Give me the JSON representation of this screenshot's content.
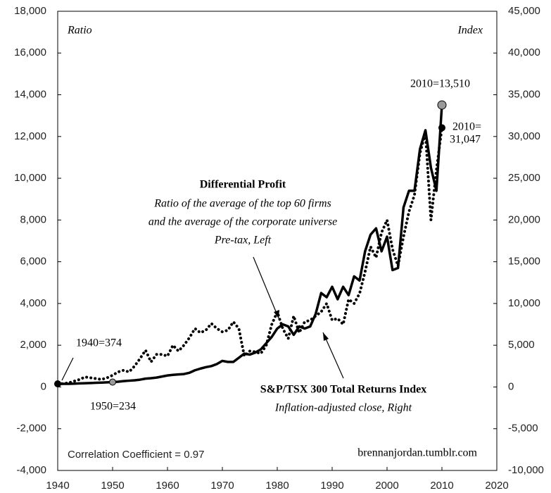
{
  "chart_data": {
    "type": "line",
    "y_label": "Ratio",
    "y2_label": "Index",
    "x": [
      1940,
      1941,
      1942,
      1943,
      1944,
      1945,
      1946,
      1947,
      1948,
      1949,
      1950,
      1951,
      1952,
      1953,
      1954,
      1955,
      1956,
      1957,
      1958,
      1959,
      1960,
      1961,
      1962,
      1963,
      1964,
      1965,
      1966,
      1967,
      1968,
      1969,
      1970,
      1971,
      1972,
      1973,
      1974,
      1975,
      1976,
      1977,
      1978,
      1979,
      1980,
      1981,
      1982,
      1983,
      1984,
      1985,
      1986,
      1987,
      1988,
      1989,
      1990,
      1991,
      1992,
      1993,
      1994,
      1995,
      1996,
      1997,
      1998,
      1999,
      2000,
      2001,
      2002,
      2003,
      2004,
      2005,
      2006,
      2007,
      2008,
      2009,
      2010
    ],
    "series": [
      {
        "name": "Differential Profit",
        "description": [
          "Ratio of the average of the top 60 firms",
          "and the average of the corporate universe",
          "Pre-tax, Left"
        ],
        "color": "#000000",
        "axis": "y",
        "values": [
          150,
          150,
          150,
          160,
          170,
          180,
          190,
          200,
          210,
          220,
          234,
          250,
          280,
          300,
          320,
          350,
          400,
          420,
          450,
          500,
          550,
          580,
          600,
          620,
          680,
          800,
          880,
          950,
          1000,
          1100,
          1250,
          1200,
          1200,
          1400,
          1600,
          1550,
          1650,
          1800,
          2100,
          2400,
          2800,
          3000,
          2900,
          2500,
          2900,
          2800,
          2900,
          3500,
          4500,
          4300,
          4800,
          4200,
          4800,
          4400,
          5300,
          5100,
          6500,
          7300,
          7600,
          6500,
          7200,
          5600,
          5700,
          8600,
          9400,
          9400,
          11400,
          12300,
          10500,
          9400,
          13510
        ]
      },
      {
        "name": "S&P/TSX 300 Total Returns Index",
        "description": [
          "Inflation-adjusted close, Right"
        ],
        "color": "#000000",
        "axis": "y2",
        "values": [
          374,
          400,
          500,
          700,
          900,
          1200,
          1100,
          1000,
          900,
          1100,
          1400,
          1800,
          2000,
          1800,
          2500,
          3400,
          4400,
          3000,
          3900,
          3900,
          3700,
          5000,
          4300,
          5000,
          5900,
          7000,
          6500,
          6800,
          7600,
          7000,
          6600,
          6800,
          7800,
          7000,
          3700,
          4300,
          4200,
          4000,
          5000,
          7500,
          9000,
          7000,
          5800,
          8500,
          6500,
          7800,
          8000,
          8500,
          9000,
          10000,
          8000,
          8200,
          7500,
          10500,
          10000,
          11200,
          13800,
          16800,
          15500,
          18500,
          20000,
          16500,
          14500,
          18000,
          21000,
          23000,
          28000,
          30500,
          20000,
          26000,
          31047
        ]
      }
    ],
    "xlim": [
      1940,
      2020
    ],
    "xticks": [
      1940,
      1950,
      1960,
      1970,
      1980,
      1990,
      2000,
      2010,
      2020
    ],
    "ylim": [
      -4000,
      18000
    ],
    "yticks": [
      {
        "value": -4000,
        "label": "-4,000"
      },
      {
        "value": -2000,
        "label": "-2,000"
      },
      0,
      {
        "value": 2000,
        "label": "2,000"
      },
      {
        "value": 4000,
        "label": "4,000"
      },
      {
        "value": 6000,
        "label": "6,000"
      },
      {
        "value": 8000,
        "label": "8,000"
      },
      {
        "value": 10000,
        "label": "10,000"
      },
      {
        "value": 12000,
        "label": "12,000"
      },
      {
        "value": 14000,
        "label": "14,000"
      },
      {
        "value": 16000,
        "label": "16,000"
      },
      {
        "value": 18000,
        "label": "18,000"
      }
    ],
    "y2lim": [
      -10000,
      45000
    ],
    "y2ticks": [
      {
        "value": -10000,
        "label": "-10,000"
      },
      {
        "value": -5000,
        "label": "-5,000"
      },
      0,
      {
        "value": 5000,
        "label": "5,000"
      },
      {
        "value": 10000,
        "label": "10,000"
      },
      {
        "value": 15000,
        "label": "15,000"
      },
      {
        "value": 20000,
        "label": "20,000"
      },
      {
        "value": 25000,
        "label": "25,000"
      },
      {
        "value": 30000,
        "label": "30,000"
      },
      {
        "value": 35000,
        "label": "35,000"
      },
      {
        "value": 40000,
        "label": "40,000"
      },
      {
        "value": 45000,
        "label": "45,000"
      }
    ],
    "annotations": [
      "1940=374",
      "1950=234",
      "2010=13,510",
      "2010=",
      "31,047",
      "Correlation Coefficient = 0.97",
      "brennanjordan.tumblr.com"
    ]
  }
}
